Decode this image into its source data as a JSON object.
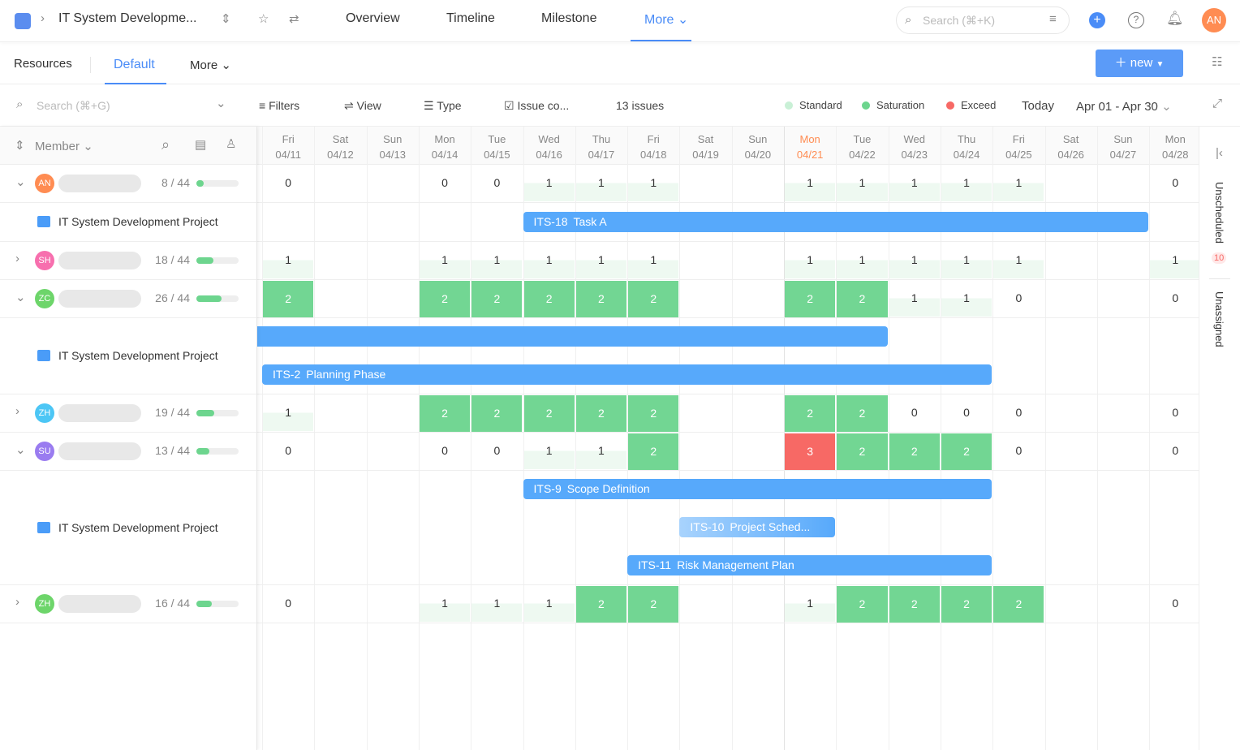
{
  "topbar": {
    "project": "IT System Developme...",
    "tabs": [
      "Overview",
      "Timeline",
      "Milestone",
      "More"
    ],
    "search_placeholder": "Search (⌘+K)",
    "avatar": "AN"
  },
  "subnav": {
    "title": "Resources",
    "tabs": [
      "Default",
      "More"
    ],
    "new_label": "new"
  },
  "toolbar": {
    "search_placeholder": "Search (⌘+G)",
    "filters": "Filters",
    "view": "View",
    "type": "Type",
    "issue": "Issue co...",
    "count": "13 issues",
    "legend": [
      {
        "label": "Standard",
        "color": "#c9f0d6"
      },
      {
        "label": "Saturation",
        "color": "#6dd58e"
      },
      {
        "label": "Exceed",
        "color": "#f76965"
      }
    ],
    "today": "Today",
    "range": "Apr 01 - Apr 30"
  },
  "member_header": "Member",
  "days": [
    {
      "d": "Fri",
      "date": "04/11"
    },
    {
      "d": "Sat",
      "date": "04/12"
    },
    {
      "d": "Sun",
      "date": "04/13"
    },
    {
      "d": "Mon",
      "date": "04/14"
    },
    {
      "d": "Tue",
      "date": "04/15"
    },
    {
      "d": "Wed",
      "date": "04/16"
    },
    {
      "d": "Thu",
      "date": "04/17"
    },
    {
      "d": "Fri",
      "date": "04/18"
    },
    {
      "d": "Sat",
      "date": "04/19"
    },
    {
      "d": "Sun",
      "date": "04/20"
    },
    {
      "d": "Mon",
      "date": "04/21",
      "today": true
    },
    {
      "d": "Tue",
      "date": "04/22"
    },
    {
      "d": "Wed",
      "date": "04/23"
    },
    {
      "d": "Thu",
      "date": "04/24"
    },
    {
      "d": "Fri",
      "date": "04/25"
    },
    {
      "d": "Sat",
      "date": "04/26"
    },
    {
      "d": "Sun",
      "date": "04/27"
    },
    {
      "d": "Mon",
      "date": "04/28"
    }
  ],
  "rows": [
    {
      "type": "member",
      "initials": "AN",
      "color": "#ff8c52",
      "expanded": true,
      "count": "8 / 44",
      "progress": 0.18,
      "cells": [
        0,
        "",
        "",
        0,
        0,
        1,
        1,
        1,
        "",
        "",
        1,
        1,
        1,
        1,
        1,
        "",
        "",
        0
      ]
    },
    {
      "type": "project",
      "name": "IT System Development Project",
      "bars": [
        {
          "key": "ITS-18",
          "title": "Task A",
          "start": 5,
          "end": 16
        }
      ]
    },
    {
      "type": "member",
      "initials": "SH",
      "color": "#f76fae",
      "expanded": false,
      "count": "18 / 44",
      "progress": 0.41,
      "cells": [
        1,
        "",
        "",
        1,
        1,
        1,
        1,
        1,
        "",
        "",
        1,
        1,
        1,
        1,
        1,
        "",
        "",
        1
      ]
    },
    {
      "type": "member",
      "initials": "ZC",
      "color": "#6dd56a",
      "expanded": true,
      "count": "26 / 44",
      "progress": 0.59,
      "cells": [
        2,
        "",
        "",
        2,
        2,
        2,
        2,
        2,
        "",
        "",
        2,
        2,
        1,
        1,
        0,
        "",
        "",
        0
      ]
    },
    {
      "type": "project",
      "name": "IT System Development Project",
      "bars": [
        {
          "key": "",
          "title": "",
          "start": -1,
          "end": 11
        },
        {
          "key": "ITS-2",
          "title": "Planning Phase",
          "start": 0,
          "end": 13
        }
      ]
    },
    {
      "type": "member",
      "initials": "ZH",
      "color": "#4cc6f5",
      "expanded": false,
      "count": "19 / 44",
      "progress": 0.43,
      "cells": [
        1,
        "",
        "",
        2,
        2,
        2,
        2,
        2,
        "",
        "",
        2,
        2,
        0,
        0,
        0,
        "",
        "",
        0
      ]
    },
    {
      "type": "member",
      "initials": "SU",
      "color": "#9a7cf0",
      "expanded": true,
      "count": "13 / 44",
      "progress": 0.3,
      "cells": [
        0,
        "",
        "",
        0,
        0,
        1,
        1,
        2,
        "",
        "",
        3,
        2,
        2,
        2,
        0,
        "",
        "",
        0
      ]
    },
    {
      "type": "project",
      "name": "IT System Development Project",
      "bars": [
        {
          "key": "ITS-9",
          "title": "Scope Definition",
          "start": 5,
          "end": 13
        },
        {
          "key": "ITS-10",
          "title": "Project Sched...",
          "start": 8,
          "end": 10,
          "faded": true
        },
        {
          "key": "ITS-11",
          "title": "Risk Management Plan",
          "start": 7,
          "end": 13
        }
      ]
    },
    {
      "type": "member",
      "initials": "ZH",
      "color": "#6dd56a",
      "expanded": false,
      "count": "16 / 44",
      "progress": 0.36,
      "cells": [
        0,
        "",
        "",
        1,
        1,
        1,
        2,
        2,
        "",
        "",
        1,
        2,
        2,
        2,
        2,
        "",
        "",
        0
      ]
    }
  ],
  "side": {
    "unscheduled": "Unscheduled",
    "unscheduled_count": "10",
    "unassigned": "Unassigned"
  }
}
